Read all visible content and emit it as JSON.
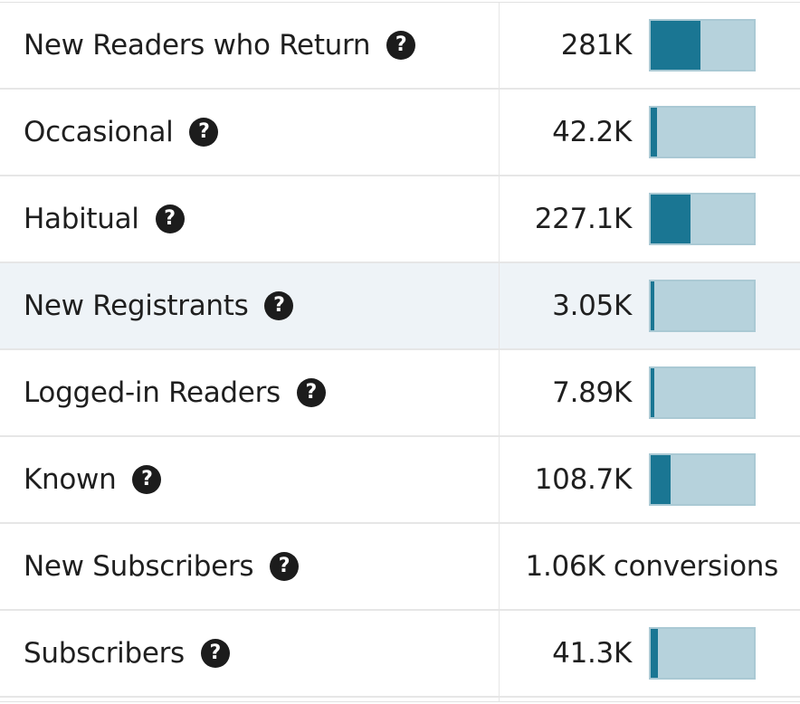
{
  "metrics": [
    {
      "label": "New Readers who Return",
      "value": "281K",
      "fill": 0.48,
      "highlight": false
    },
    {
      "label": "Occasional",
      "value": "42.2K",
      "fill": 0.06,
      "highlight": false
    },
    {
      "label": "Habitual",
      "value": "227.1K",
      "fill": 0.39,
      "highlight": false
    },
    {
      "label": "New Registrants",
      "value": "3.05K",
      "fill": 0.01,
      "highlight": true
    },
    {
      "label": "Logged-in Readers",
      "value": "7.89K",
      "fill": 0.015,
      "highlight": false
    },
    {
      "label": "Known",
      "value": "108.7K",
      "fill": 0.19,
      "highlight": false
    },
    {
      "label": "New Subscribers",
      "value": "1.06K conversions",
      "fill": null,
      "highlight": false
    },
    {
      "label": "Subscribers",
      "value": "41.3K",
      "fill": 0.07,
      "highlight": false
    }
  ],
  "help_icon": {
    "glyph": "?",
    "icon": "question-circle-icon"
  },
  "colors": {
    "bar_fill": "#1a7693",
    "bar_track": "#b6d2dc",
    "highlight_row": "#eef3f7"
  }
}
